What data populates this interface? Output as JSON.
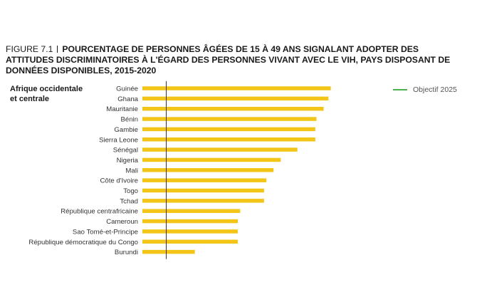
{
  "figure": {
    "label": "FIGURE 7.1",
    "title": "POURCENTAGE DE PERSONNES ÂGÉES DE 15 À 49 ANS SIGNALANT ADOPTER DES ATTITUDES DISCRIMINATOIRES À L'ÉGARD DES PERSONNES VIVANT AVEC LE VIH, PAYS DISPOSANT DE DONNÉES DISPONIBLES, 2015-2020"
  },
  "region_label": "Afrique occidentale et centrale",
  "legend": {
    "target_label": "Objectif 2025",
    "target_color": "#4caf50"
  },
  "colors": {
    "bar": "#f2c518",
    "axis": "#333333"
  },
  "chart_data": {
    "type": "bar",
    "orientation": "horizontal",
    "title": "POURCENTAGE DE PERSONNES ÂGÉES DE 15 À 49 ANS SIGNALANT ADOPTER DES ATTITUDES DISCRIMINATOIRES À L'ÉGARD DES PERSONNES VIVANT AVEC LE VIH, PAYS DISPOSANT DE DONNÉES DISPONIBLES, 2015-2020",
    "categories": [
      "Guinée",
      "Ghana",
      "Mauritanie",
      "Bénin",
      "Gambie",
      "Sierra Leone",
      "Sénégal",
      "Nigeria",
      "Mali",
      "Côte d'Ivoire",
      "Togo",
      "Tchad",
      "République centrafricaine",
      "Cameroun",
      "Sao Tomé-et-Principe",
      "République démocratique du Congo",
      "Burundi"
    ],
    "values": [
      79,
      78,
      76,
      73,
      72.5,
      72.5,
      65,
      58,
      55,
      52,
      51,
      51,
      41,
      40,
      40,
      40,
      22
    ],
    "target": 10,
    "xlim": [
      0,
      100
    ],
    "xlabel": "",
    "ylabel": ""
  }
}
